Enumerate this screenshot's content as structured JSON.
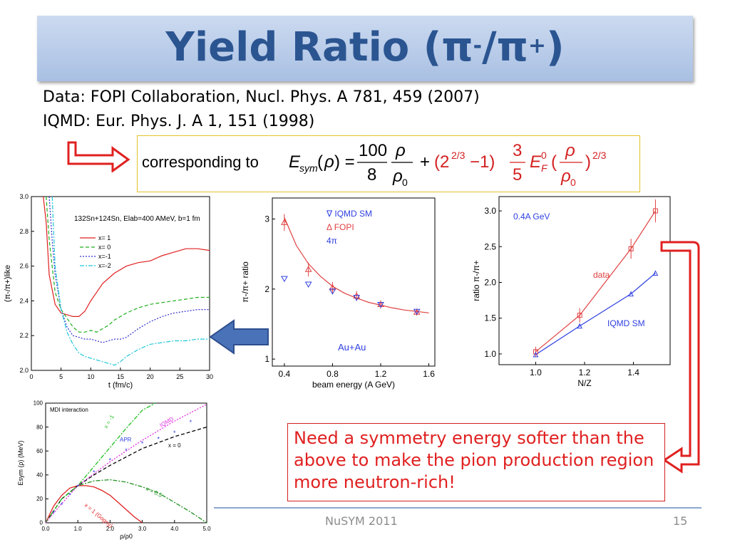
{
  "slide": {
    "title_main": "Yield Ratio (π",
    "title_sup1": "-",
    "title_mid": "/π",
    "title_sup2": "+",
    "title_end": ")",
    "ref_data": "Data: FOPI Collaboration, Nucl. Phys. A 781, 459 (2007)",
    "ref_iqmd": "IQMD: Eur. Phys. J. A 1, 151 (1998)",
    "formula_prefix": "corresponding to",
    "note": "Need a symmetry energy softer than the above to make the pion production region more neutron-rich!",
    "footer_center": "NuSYM 2011",
    "page_number": "15",
    "colors": {
      "title": "#2b5591",
      "red": "#e02020",
      "blue_arrow": "#4a72b8"
    }
  },
  "chart_data": [
    {
      "type": "line",
      "id": "time-evolution",
      "annotation": "132Sn+124Sn, Elab=400 AMeV, b=1 fm",
      "xlabel": "t (fm/c)",
      "ylabel": "(π-/π+)like",
      "xlim": [
        0,
        30
      ],
      "ylim": [
        2.0,
        3.0
      ],
      "xticks": [
        "0",
        "5",
        "10",
        "15",
        "20",
        "25",
        "30"
      ],
      "yticks": [
        "2.0",
        "2.2",
        "2.4",
        "2.6",
        "2.8",
        "3.0"
      ],
      "series": [
        {
          "name": "x= 1",
          "color": "#e02020",
          "dash": "",
          "x": [
            2,
            2.5,
            3,
            4,
            5,
            6,
            7,
            8,
            9,
            10,
            11,
            12,
            14,
            16,
            18,
            20,
            22,
            24,
            26,
            28,
            30
          ],
          "y": [
            3.0,
            2.85,
            2.55,
            2.38,
            2.33,
            2.32,
            2.31,
            2.31,
            2.34,
            2.4,
            2.45,
            2.5,
            2.56,
            2.6,
            2.62,
            2.63,
            2.66,
            2.68,
            2.7,
            2.7,
            2.69
          ]
        },
        {
          "name": "x= 0",
          "color": "#20b020",
          "dash": "5,3",
          "x": [
            2.5,
            3,
            4,
            5,
            6,
            7,
            8,
            9,
            10,
            11,
            12,
            13,
            14,
            16,
            18,
            20,
            22,
            24,
            26,
            28,
            30
          ],
          "y": [
            3.0,
            2.75,
            2.45,
            2.35,
            2.3,
            2.25,
            2.22,
            2.22,
            2.23,
            2.22,
            2.24,
            2.26,
            2.29,
            2.33,
            2.36,
            2.38,
            2.39,
            2.4,
            2.41,
            2.42,
            2.42
          ]
        },
        {
          "name": "x=-1",
          "color": "#3030d0",
          "dash": "2,2",
          "x": [
            3,
            3.5,
            4,
            5,
            6,
            7,
            8,
            9,
            10,
            11,
            12,
            13,
            14,
            15,
            16,
            18,
            20,
            22,
            24,
            26,
            28,
            30
          ],
          "y": [
            3.0,
            2.75,
            2.55,
            2.35,
            2.25,
            2.2,
            2.19,
            2.18,
            2.18,
            2.17,
            2.16,
            2.17,
            2.18,
            2.18,
            2.19,
            2.24,
            2.28,
            2.31,
            2.33,
            2.34,
            2.35,
            2.35
          ]
        },
        {
          "name": "x=-2",
          "color": "#20c8d8",
          "dash": "6,2,2,2",
          "x": [
            3.5,
            4,
            5,
            6,
            7,
            8,
            9,
            10,
            11,
            12,
            13,
            14,
            15,
            16,
            18,
            20,
            22,
            24,
            26,
            28,
            30
          ],
          "y": [
            3.0,
            2.6,
            2.35,
            2.22,
            2.15,
            2.1,
            2.08,
            2.07,
            2.06,
            2.05,
            2.04,
            2.03,
            2.05,
            2.08,
            2.12,
            2.15,
            2.16,
            2.17,
            2.17,
            2.18,
            2.18
          ]
        }
      ]
    },
    {
      "type": "scatter",
      "id": "beam-energy",
      "xlabel": "beam energy (A GeV)",
      "ylabel": "π-/π+ ratio",
      "xlim": [
        0.3,
        1.65
      ],
      "ylim": [
        0.9,
        3.3
      ],
      "xticks": [
        "0.4",
        "0.8",
        "1.2",
        "1.6"
      ],
      "yticks": [
        "1",
        "2",
        "3"
      ],
      "legend": [
        "∇ IQMD SM",
        "Δ FOPI",
        "4π"
      ],
      "annotation": "Au+Au",
      "series": [
        {
          "name": "IQMD SM",
          "x": [
            0.4,
            0.6,
            0.8,
            1.0,
            1.2,
            1.5
          ],
          "y": [
            2.15,
            2.07,
            1.97,
            1.88,
            1.78,
            1.68
          ]
        },
        {
          "name": "FOPI",
          "x": [
            0.4,
            0.6,
            0.8,
            1.0,
            1.2,
            1.5
          ],
          "y": [
            2.95,
            2.28,
            2.02,
            1.9,
            1.78,
            1.67
          ],
          "err": [
            0.12,
            0.1,
            0.08,
            0.07,
            0.06,
            0.05
          ]
        },
        {
          "name": "fit",
          "x": [
            0.4,
            0.5,
            0.6,
            0.7,
            0.8,
            0.9,
            1.0,
            1.1,
            1.2,
            1.3,
            1.4,
            1.5,
            1.6
          ],
          "y": [
            3.02,
            2.62,
            2.36,
            2.18,
            2.04,
            1.94,
            1.87,
            1.81,
            1.77,
            1.73,
            1.7,
            1.68,
            1.66
          ]
        }
      ]
    },
    {
      "type": "line",
      "id": "nz-ratio",
      "xlabel": "N/Z",
      "ylabel": "ratio π-/π+",
      "xlim": [
        0.85,
        1.55
      ],
      "ylim": [
        0.85,
        3.2
      ],
      "xticks": [
        "1.0",
        "1.2",
        "1.4"
      ],
      "yticks": [
        "1.0",
        "1.5",
        "2.0",
        "2.5",
        "3.0"
      ],
      "annotation": "0.4A GeV",
      "series": [
        {
          "name": "data",
          "x": [
            1.0,
            1.18,
            1.39,
            1.49
          ],
          "y": [
            1.03,
            1.54,
            2.47,
            3.0
          ],
          "err": [
            0.07,
            0.1,
            0.14,
            0.16
          ]
        },
        {
          "name": "IQMD SM",
          "x": [
            1.0,
            1.18,
            1.39,
            1.49
          ],
          "y": [
            0.99,
            1.39,
            1.84,
            2.13
          ]
        }
      ]
    },
    {
      "type": "line",
      "id": "symmetry-energy",
      "title": "MDI interaction",
      "xlabel": "ρ/ρ0",
      "ylabel": "Esym (ρ) (MeV)",
      "xlim": [
        0,
        5.0
      ],
      "ylim": [
        0,
        100
      ],
      "xticks": [
        "0.0",
        "1.0",
        "2.0",
        "3.0",
        "4.0",
        "5.0"
      ],
      "yticks": [
        "0",
        "20",
        "40",
        "60",
        "80",
        "100"
      ],
      "series": [
        {
          "name": "x = 1 (Gogny)",
          "color": "#e02020",
          "x": [
            0,
            0.25,
            0.5,
            0.75,
            1.0,
            1.25,
            1.5,
            1.75,
            2.0,
            2.25,
            2.5,
            2.75,
            3.0
          ],
          "y": [
            0,
            14,
            23,
            29,
            31,
            31,
            30,
            27,
            23,
            17,
            11,
            5,
            0
          ]
        },
        {
          "name": "x = 0.5",
          "color": "#209020",
          "x": [
            0,
            0.5,
            1.0,
            1.5,
            2.0,
            2.5,
            3.0,
            3.5,
            4.0,
            4.5,
            5.0
          ],
          "y": [
            0,
            20,
            31,
            35,
            36,
            34,
            30,
            25,
            17,
            9,
            0
          ]
        },
        {
          "name": "x = 0",
          "color": "#000000",
          "x": [
            0,
            0.5,
            1.0,
            1.5,
            2.0,
            2.5,
            3.0,
            3.5,
            4.0,
            4.5,
            5.0
          ],
          "y": [
            0,
            20,
            31,
            40,
            48,
            55,
            62,
            67,
            72,
            76,
            80
          ]
        },
        {
          "name": "x = -1",
          "color": "#20c020",
          "x": [
            0,
            0.5,
            1.0,
            1.5,
            2.0,
            2.5,
            3.0,
            3.4
          ],
          "y": [
            0,
            20,
            31,
            47,
            63,
            79,
            94,
            100
          ]
        },
        {
          "name": "IQMD",
          "color": "#e030e0",
          "x": [
            0,
            0.5,
            1.0,
            1.5,
            2.0,
            2.5,
            3.0,
            3.5,
            4.0,
            4.5,
            5.0
          ],
          "y": [
            0,
            16,
            31,
            41,
            51,
            60,
            69,
            77,
            85,
            92,
            99
          ]
        },
        {
          "name": "APR",
          "color": "#3040e0",
          "x": [
            0.25,
            0.5,
            0.75,
            1.0,
            1.5,
            2.0,
            2.5,
            3.0,
            3.5,
            4.0,
            4.5
          ],
          "y": [
            8,
            15,
            23,
            30,
            42,
            52,
            60,
            66,
            70,
            75,
            84
          ]
        }
      ]
    }
  ]
}
